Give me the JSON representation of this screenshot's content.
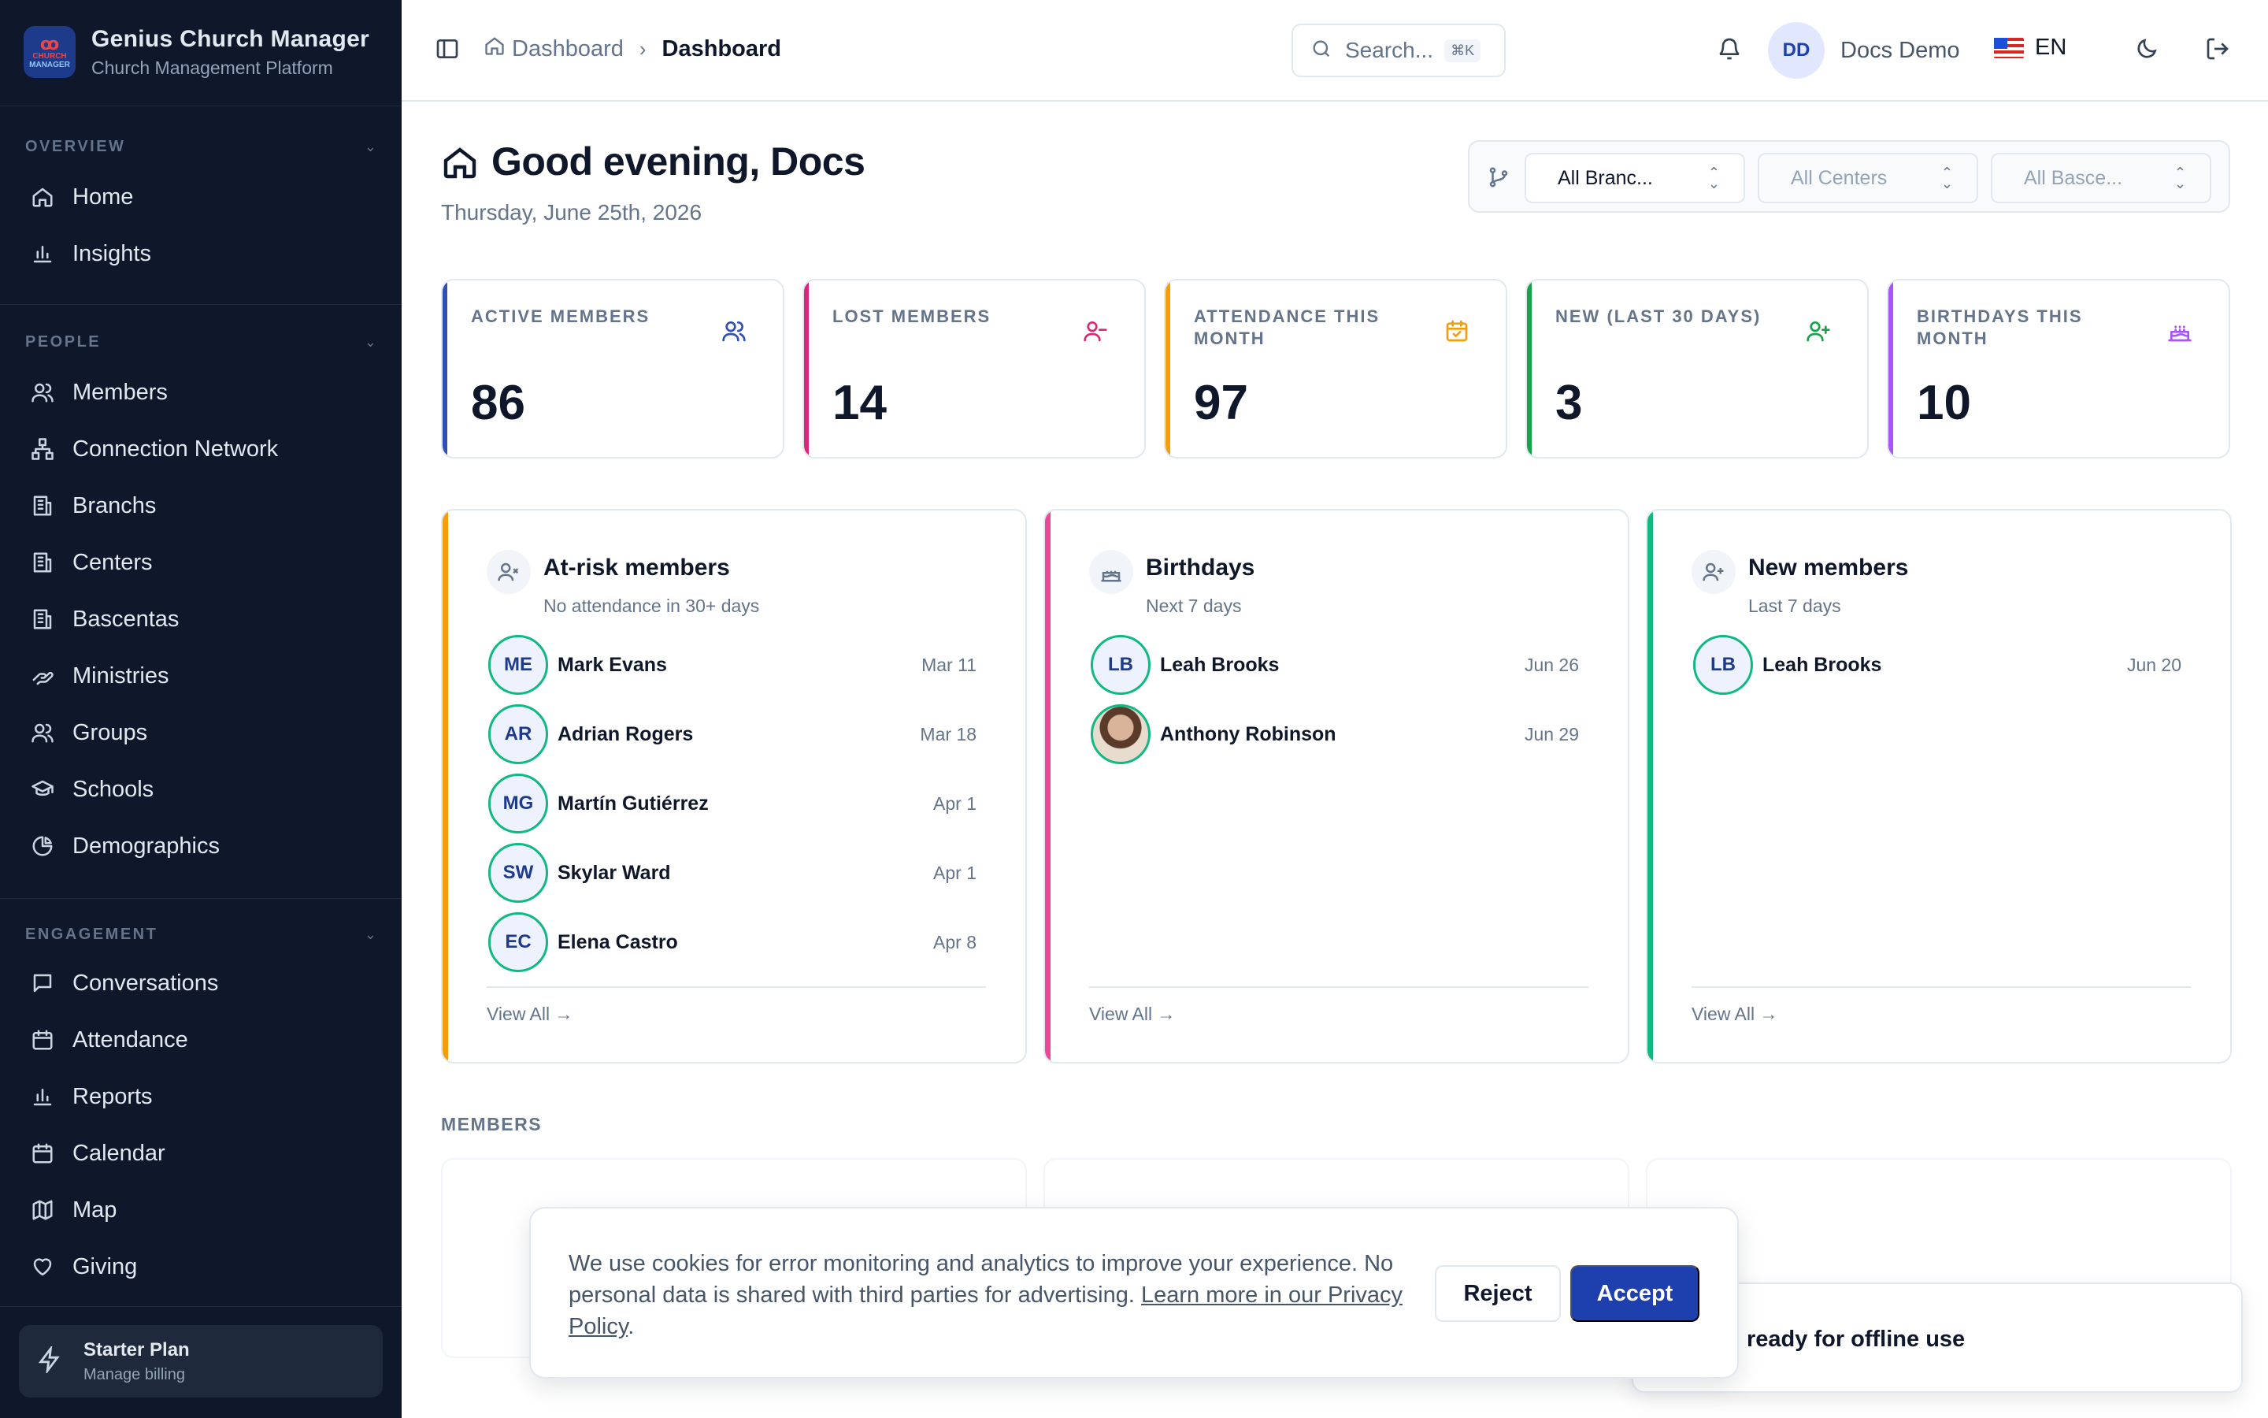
{
  "brand": {
    "title": "Genius Church Manager",
    "subtitle": "Church Management Platform",
    "logo_top": "CHURCH",
    "logo_bottom": "MANAGER"
  },
  "sidebar": {
    "sections": [
      {
        "label": "OVERVIEW",
        "items": [
          {
            "label": "Home",
            "icon": "home-icon"
          },
          {
            "label": "Insights",
            "icon": "bar-chart-icon"
          }
        ]
      },
      {
        "label": "PEOPLE",
        "items": [
          {
            "label": "Members",
            "icon": "users-icon"
          },
          {
            "label": "Connection Network",
            "icon": "network-icon"
          },
          {
            "label": "Branchs",
            "icon": "building-icon"
          },
          {
            "label": "Centers",
            "icon": "building-icon"
          },
          {
            "label": "Bascentas",
            "icon": "building-icon"
          },
          {
            "label": "Ministries",
            "icon": "hand-icon"
          },
          {
            "label": "Groups",
            "icon": "users-icon"
          },
          {
            "label": "Schools",
            "icon": "graduation-cap-icon"
          },
          {
            "label": "Demographics",
            "icon": "pie-chart-icon"
          }
        ]
      },
      {
        "label": "ENGAGEMENT",
        "items": [
          {
            "label": "Conversations",
            "icon": "message-icon"
          },
          {
            "label": "Attendance",
            "icon": "calendar-icon"
          },
          {
            "label": "Reports",
            "icon": "bar-chart-icon"
          },
          {
            "label": "Calendar",
            "icon": "calendar-icon"
          },
          {
            "label": "Map",
            "icon": "map-icon"
          },
          {
            "label": "Giving",
            "icon": "heart-icon"
          }
        ]
      }
    ],
    "plan": {
      "title": "Starter Plan",
      "subtitle": "Manage billing"
    }
  },
  "header": {
    "breadcrumb": {
      "parent": "Dashboard",
      "current": "Dashboard"
    },
    "search": {
      "placeholder": "Search...",
      "shortcut": "⌘K"
    },
    "user": {
      "initials": "DD",
      "name": "Docs Demo"
    },
    "language": "EN"
  },
  "page": {
    "greeting": "Good evening, Docs",
    "date": "Thursday, June 25th, 2026"
  },
  "filters": {
    "branches": "All Branc...",
    "centers": "All Centers",
    "bascentas": "All Basce..."
  },
  "stats": [
    {
      "label": "ACTIVE MEMBERS",
      "value": "86",
      "color": "#2f4fb6",
      "icon": "users-icon"
    },
    {
      "label": "LOST MEMBERS",
      "value": "14",
      "color": "#db2777",
      "icon": "user-minus-icon"
    },
    {
      "label": "ATTENDANCE THIS MONTH",
      "value": "97",
      "color": "#f59e0b",
      "icon": "calendar-check-icon"
    },
    {
      "label": "NEW (LAST 30 DAYS)",
      "value": "3",
      "color": "#16a34a",
      "icon": "user-plus-icon"
    },
    {
      "label": "BIRTHDAYS THIS MONTH",
      "value": "10",
      "color": "#a855f7",
      "icon": "cake-icon"
    }
  ],
  "cards": [
    {
      "title": "At-risk members",
      "subtitle": "No attendance in 30+ days",
      "color": "#f59e0b",
      "view_all": "View All →",
      "rows": [
        {
          "initials": "ME",
          "name": "Mark Evans",
          "date": "Mar 11"
        },
        {
          "initials": "AR",
          "name": "Adrian Rogers",
          "date": "Mar 18"
        },
        {
          "initials": "MG",
          "name": "Martín Gutiérrez",
          "date": "Apr 1"
        },
        {
          "initials": "SW",
          "name": "Skylar Ward",
          "date": "Apr 1"
        },
        {
          "initials": "EC",
          "name": "Elena Castro",
          "date": "Apr 8"
        }
      ]
    },
    {
      "title": "Birthdays",
      "subtitle": "Next 7 days",
      "color": "#ec4899",
      "view_all": "View All →",
      "rows": [
        {
          "initials": "LB",
          "name": "Leah Brooks",
          "date": "Jun 26"
        },
        {
          "initials": "",
          "name": "Anthony Robinson",
          "date": "Jun 29"
        }
      ]
    },
    {
      "title": "New members",
      "subtitle": "Last 7 days",
      "color": "#10b981",
      "view_all": "View All →",
      "rows": [
        {
          "initials": "LB",
          "name": "Leah Brooks",
          "date": "Jun 20"
        }
      ]
    }
  ],
  "members_section": "MEMBERS",
  "cookie": {
    "text": "We use cookies for error monitoring and analytics to improve your experience. No personal data is shared with third parties for advertising. ",
    "link": "Learn more in our Privacy Policy",
    "period": ".",
    "reject": "Reject",
    "accept": "Accept"
  },
  "toast": {
    "text": "ready for offline use"
  }
}
